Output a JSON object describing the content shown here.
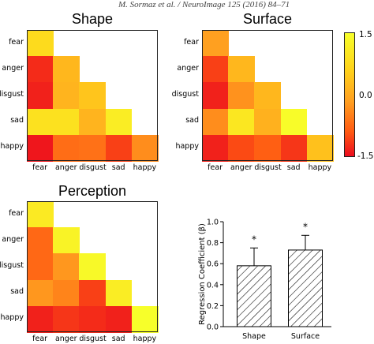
{
  "header": "M. Sormaz et al. / NeuroImage 125 (2016) 84–71",
  "colors": {
    "scale": [
      "#ec0c1e",
      "#ff5a12",
      "#ffa020",
      "#ffd21a",
      "#f7ff2a"
    ]
  },
  "chart_data": [
    {
      "type": "heatmap",
      "title": "Shape",
      "rows": [
        "fear",
        "anger",
        "disgust",
        "sad",
        "happy"
      ],
      "cols": [
        "fear",
        "anger",
        "disgust",
        "sad",
        "happy"
      ],
      "values": [
        [
          0.9
        ],
        [
          -1.2,
          0.35
        ],
        [
          -1.3,
          0.3,
          0.55
        ],
        [
          1.0,
          1.0,
          0.3,
          1.2
        ],
        [
          -1.4,
          -0.55,
          -0.5,
          -1.0,
          -0.2
        ]
      ]
    },
    {
      "type": "heatmap",
      "title": "Surface",
      "rows": [
        "fear",
        "anger",
        "disgust",
        "sad",
        "happy"
      ],
      "cols": [
        "fear",
        "anger",
        "disgust",
        "sad",
        "happy"
      ],
      "values": [
        [
          0.0
        ],
        [
          -1.0,
          0.35
        ],
        [
          -1.3,
          -0.15,
          0.35
        ],
        [
          -0.2,
          1.1,
          0.25,
          1.45
        ],
        [
          -1.3,
          -0.9,
          -0.7,
          -1.1,
          0.5
        ]
      ]
    },
    {
      "type": "heatmap",
      "title": "Perception",
      "rows": [
        "fear",
        "anger",
        "disgust",
        "sad",
        "happy"
      ],
      "cols": [
        "fear",
        "anger",
        "disgust",
        "sad",
        "happy"
      ],
      "values": [
        [
          1.15
        ],
        [
          -0.6,
          1.3
        ],
        [
          -0.6,
          -0.1,
          1.4
        ],
        [
          -0.1,
          -0.3,
          -1.0,
          1.2
        ],
        [
          -1.3,
          -1.1,
          -1.2,
          -1.3,
          1.55
        ]
      ]
    },
    {
      "type": "colorbar",
      "ticks": [
        "1.5",
        "0.0",
        "-1.5"
      ],
      "range": [
        -1.5,
        1.5
      ]
    },
    {
      "type": "bar",
      "categories": [
        "Shape",
        "Surface"
      ],
      "values": [
        0.58,
        0.73
      ],
      "errors": [
        0.17,
        0.14
      ],
      "significance": [
        "*",
        "*"
      ],
      "ylabel": "Regression Coefficient (β)",
      "ylim": [
        0,
        1
      ],
      "yticks": [
        "0.0",
        "0.2",
        "0.4",
        "0.6",
        "0.8",
        "1.0"
      ]
    }
  ]
}
